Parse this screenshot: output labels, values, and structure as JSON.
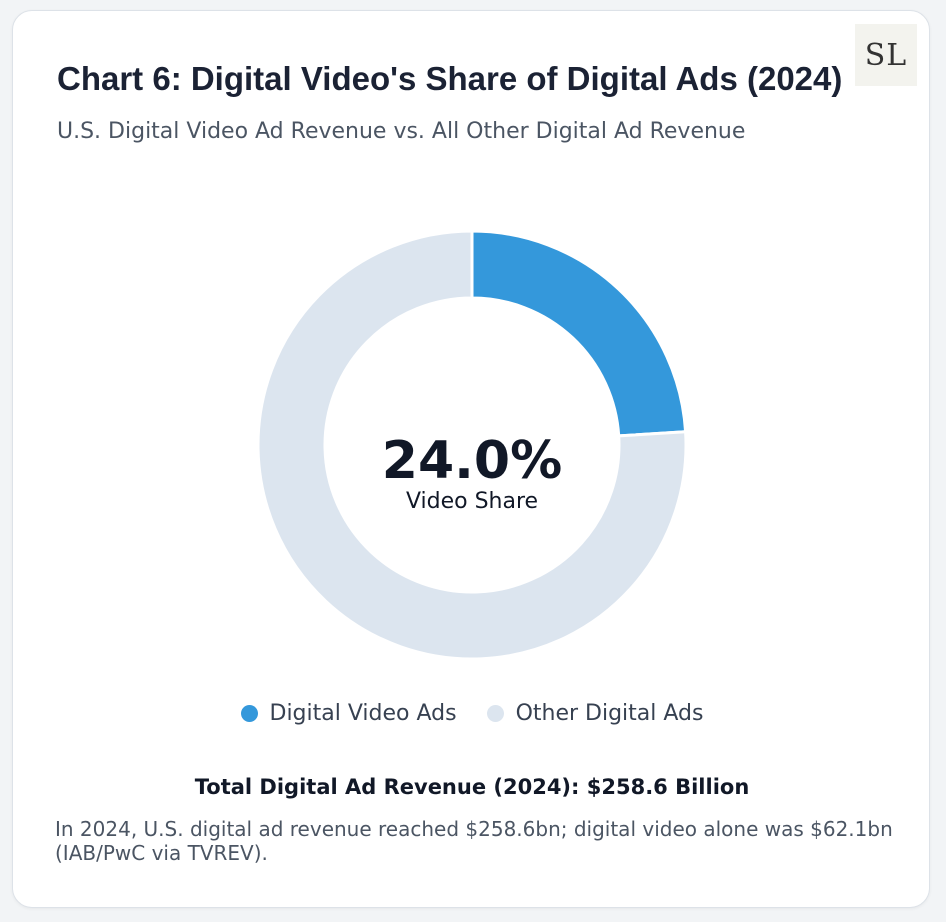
{
  "card": {
    "title": "Chart 6: Digital Video's Share of Digital Ads (2024)",
    "subtitle": "U.S. Digital Video Ad Revenue vs. All Other Digital Ad Revenue",
    "logo_text": "SL",
    "total_text": "Total Digital Ad Revenue (2024): $258.6 Billion",
    "note": "In 2024, U.S. digital ad revenue reached $258.6bn; digital video alone was $62.1bn (IAB/PwC via TVREV)."
  },
  "chart_data": {
    "type": "pie",
    "variant": "donut",
    "title": "Chart 6: Digital Video's Share of Digital Ads (2024)",
    "subtitle": "U.S. Digital Video Ad Revenue vs. All Other Digital Ad Revenue",
    "categories": [
      "Digital Video Ads",
      "Other Digital Ads"
    ],
    "values": [
      62.1,
      196.5
    ],
    "colors": [
      "#3498db",
      "#dce5ef"
    ],
    "center_value": "24.0%",
    "center_label": "Video Share",
    "legend_position": "bottom",
    "total": 258.6
  }
}
